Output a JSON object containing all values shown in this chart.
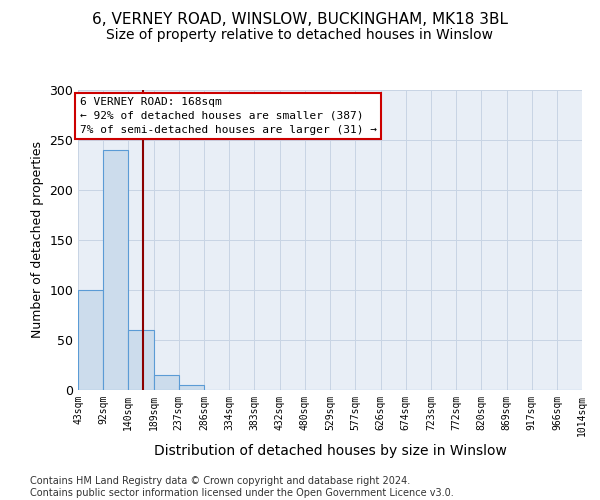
{
  "title1": "6, VERNEY ROAD, WINSLOW, BUCKINGHAM, MK18 3BL",
  "title2": "Size of property relative to detached houses in Winslow",
  "xlabel": "Distribution of detached houses by size in Winslow",
  "ylabel": "Number of detached properties",
  "bin_edges": [
    43,
    92,
    140,
    189,
    237,
    286,
    334,
    383,
    432,
    480,
    529,
    577,
    626,
    674,
    723,
    772,
    820,
    869,
    917,
    966,
    1014
  ],
  "bar_heights": [
    100,
    240,
    60,
    15,
    5,
    0,
    0,
    0,
    0,
    0,
    0,
    0,
    0,
    0,
    0,
    0,
    0,
    0,
    0,
    0
  ],
  "bar_color": "#ccdcec",
  "bar_edge_color": "#5b9bd5",
  "property_size": 168,
  "property_line_color": "#8b0000",
  "annotation_text": "6 VERNEY ROAD: 168sqm\n← 92% of detached houses are smaller (387)\n7% of semi-detached houses are larger (31) →",
  "annotation_box_color": "#ffffff",
  "annotation_border_color": "#cc0000",
  "ylim": [
    0,
    300
  ],
  "yticks": [
    0,
    50,
    100,
    150,
    200,
    250,
    300
  ],
  "footer_text": "Contains HM Land Registry data © Crown copyright and database right 2024.\nContains public sector information licensed under the Open Government Licence v3.0.",
  "grid_color": "#c8d4e4",
  "bg_color": "#e8eef6",
  "title1_fontsize": 11,
  "title2_fontsize": 10,
  "footer_fontsize": 7
}
